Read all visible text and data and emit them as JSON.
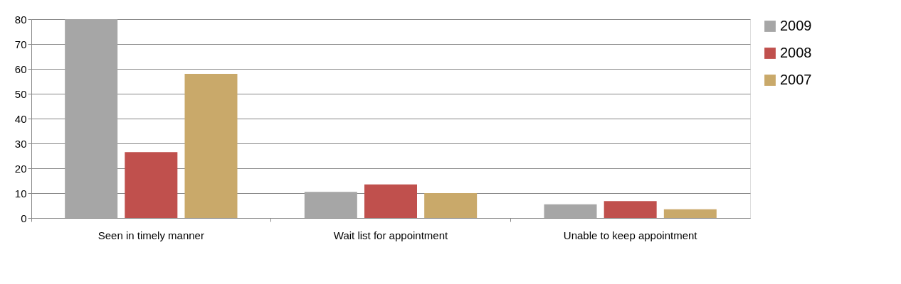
{
  "chart_data": {
    "type": "bar",
    "categories": [
      "Seen in timely manner",
      "Wait list for appointment",
      "Unable to keep appointment"
    ],
    "series": [
      {
        "name": "2009",
        "color": "#a6a6a6",
        "values": [
          80,
          10.5,
          5.5
        ]
      },
      {
        "name": "2008",
        "color": "#c0504d",
        "values": [
          26.5,
          13.5,
          6.8
        ]
      },
      {
        "name": "2007",
        "color": "#c9a96a",
        "values": [
          58,
          10,
          3.5
        ]
      }
    ],
    "ylim": [
      0,
      80
    ],
    "yticks": [
      0,
      10,
      20,
      30,
      40,
      50,
      60,
      70,
      80
    ],
    "grid": "y",
    "legend": "right"
  }
}
